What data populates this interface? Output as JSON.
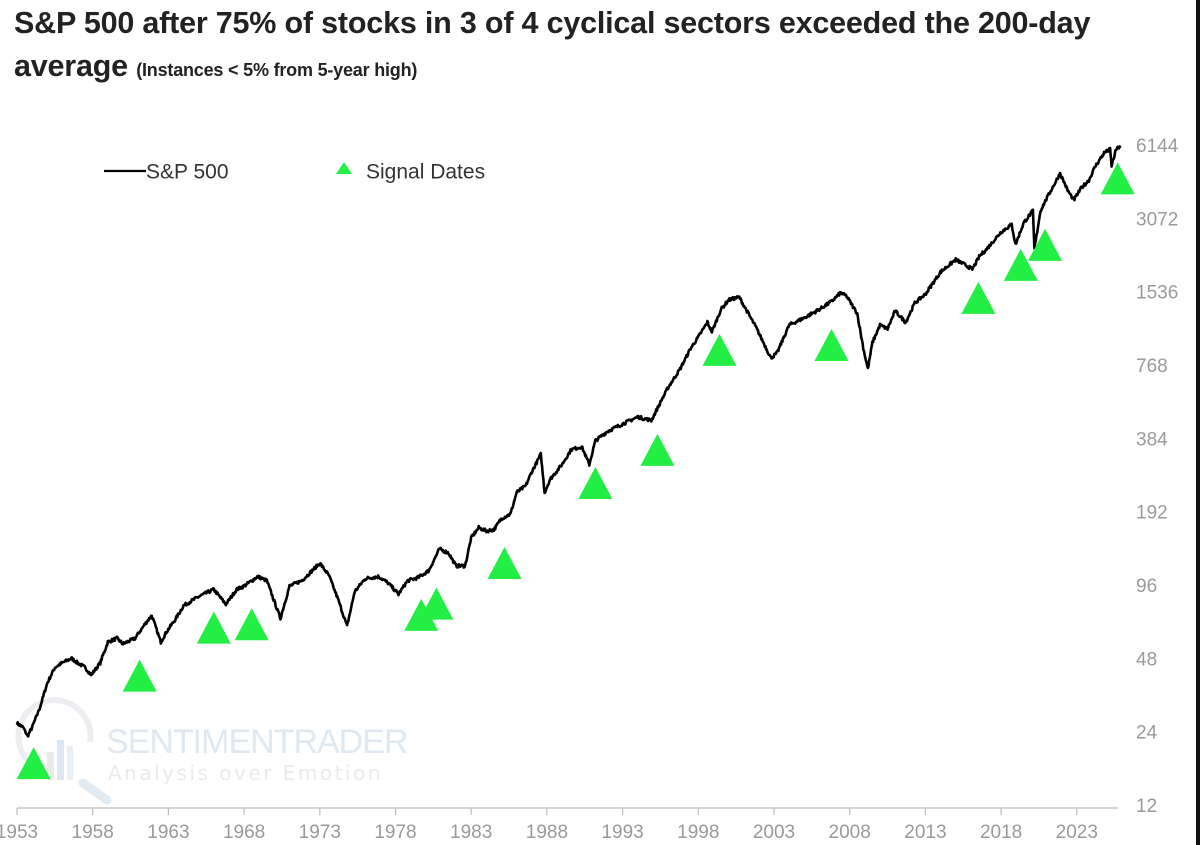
{
  "chart_data": {
    "type": "line",
    "title": "S&P 500 after 75% of stocks in 3 of 4 cyclical sectors exceeded the 200-day average",
    "subtitle": "(Instances < 5% from 5-year high)",
    "xlabel": "",
    "ylabel": "",
    "yscale": "log2",
    "xlim": [
      1952,
      2026
    ],
    "ylim": [
      12,
      6144
    ],
    "x_ticks": [
      "1953",
      "1958",
      "1963",
      "1968",
      "1973",
      "1978",
      "1983",
      "1988",
      "1993",
      "1998",
      "2003",
      "2008",
      "2013",
      "2018",
      "2023"
    ],
    "x_tick_values": [
      1953,
      1958,
      1963,
      1968,
      1973,
      1978,
      1983,
      1988,
      1993,
      1998,
      2003,
      2008,
      2013,
      2018,
      2023
    ],
    "y_ticks": [
      "6144",
      "3072",
      "1536",
      "768",
      "384",
      "192",
      "96",
      "48",
      "24",
      "12"
    ],
    "y_tick_values": [
      6144,
      3072,
      1536,
      768,
      384,
      192,
      96,
      48,
      24,
      12
    ],
    "grid": false,
    "legend": {
      "placement": "top-left",
      "entries": [
        {
          "label": "S&P 500",
          "marker": "line",
          "color": "#000000"
        },
        {
          "label": "Signal Dates",
          "marker": "triangle",
          "color": "#22ee44"
        }
      ]
    },
    "series": [
      {
        "name": "S&P 500",
        "color": "#000000",
        "x": [
          1953.0,
          1953.4,
          1953.7,
          1954.0,
          1954.5,
          1955.0,
          1955.5,
          1956.0,
          1956.6,
          1957.0,
          1957.5,
          1957.9,
          1958.5,
          1959.0,
          1959.6,
          1960.0,
          1960.8,
          1961.5,
          1961.9,
          1962.5,
          1962.9,
          1963.5,
          1964.0,
          1965.0,
          1966.0,
          1966.8,
          1967.5,
          1968.0,
          1968.9,
          1969.5,
          1970.4,
          1971.0,
          1971.8,
          1972.5,
          1973.0,
          1973.6,
          1974.2,
          1974.8,
          1975.3,
          1976.0,
          1976.9,
          1977.5,
          1978.2,
          1978.8,
          1979.5,
          1980.2,
          1980.9,
          1981.5,
          1982.0,
          1982.6,
          1983.0,
          1983.5,
          1984.0,
          1984.5,
          1985.0,
          1985.6,
          1986.0,
          1986.6,
          1987.0,
          1987.6,
          1987.85,
          1988.2,
          1989.0,
          1989.6,
          1990.3,
          1990.8,
          1991.2,
          1992.0,
          1993.0,
          1994.0,
          1994.9,
          1995.5,
          1996.0,
          1996.8,
          1997.5,
          1998.0,
          1998.6,
          1998.9,
          1999.5,
          2000.0,
          2000.7,
          2001.3,
          2001.8,
          2002.3,
          2002.8,
          2003.2,
          2004.0,
          2005.0,
          2006.0,
          2006.8,
          2007.4,
          2007.8,
          2008.5,
          2008.9,
          2009.2,
          2009.5,
          2010.0,
          2010.5,
          2011.0,
          2011.7,
          2012.3,
          2013.0,
          2014.0,
          2015.0,
          2015.8,
          2016.1,
          2016.6,
          2017.0,
          2018.0,
          2018.7,
          2018.95,
          2019.5,
          2020.1,
          2020.2,
          2020.6,
          2021.0,
          2021.9,
          2022.4,
          2022.8,
          2023.3,
          2023.8,
          2024.2,
          2024.8,
          2025.2,
          2025.3,
          2025.6,
          2025.9
        ],
        "y": [
          26,
          25,
          23,
          25,
          30,
          38,
          44,
          46,
          48,
          46,
          44,
          41,
          46,
          56,
          58,
          55,
          58,
          67,
          72,
          56,
          62,
          70,
          79,
          86,
          92,
          80,
          92,
          95,
          104,
          100,
          70,
          95,
          100,
          110,
          118,
          105,
          84,
          65,
          90,
          102,
          104,
          98,
          88,
          100,
          103,
          110,
          135,
          130,
          115,
          115,
          150,
          165,
          160,
          162,
          180,
          188,
          230,
          245,
          280,
          330,
          230,
          260,
          300,
          345,
          355,
          300,
          375,
          410,
          440,
          470,
          455,
          540,
          620,
          740,
          900,
          1000,
          1150,
          1050,
          1300,
          1420,
          1460,
          1250,
          1100,
          950,
          820,
          860,
          1120,
          1200,
          1300,
          1400,
          1520,
          1470,
          1250,
          900,
          740,
          950,
          1120,
          1080,
          1280,
          1150,
          1380,
          1500,
          1850,
          2080,
          1950,
          1900,
          2160,
          2280,
          2700,
          2900,
          2400,
          2950,
          3300,
          2300,
          3300,
          3700,
          4700,
          4000,
          3650,
          4100,
          4400,
          5000,
          5700,
          5900,
          5050,
          5900,
          6100
        ]
      },
      {
        "name": "Signal Dates",
        "marker": "triangle",
        "color": "#22ee44",
        "x": [
          1954.1,
          1961.1,
          1966.0,
          1968.5,
          1979.7,
          1980.7,
          1985.2,
          1991.2,
          1995.3,
          1999.4,
          2006.8,
          2016.5,
          2019.3,
          2020.9,
          2025.7
        ],
        "y": [
          17.5,
          40,
          63,
          65,
          71,
          79,
          116,
          247,
          338,
          870,
          911,
          1421,
          1943,
          2346,
          4400
        ]
      }
    ],
    "watermark": {
      "brand_line1": "SENTIMENTRADER",
      "brand_line2": "Analysis over Emotion"
    }
  }
}
